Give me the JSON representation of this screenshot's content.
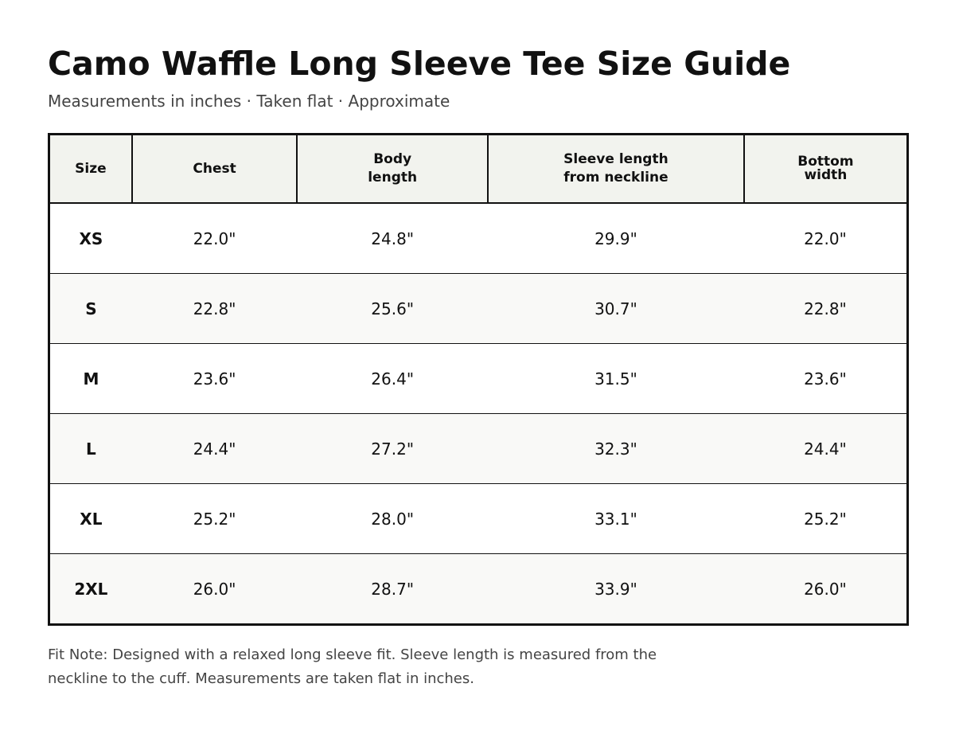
{
  "title": "Camo Waffle Long Sleeve Tee Size Guide",
  "subtitle": "Measurements in inches · Taken flat · Approximate",
  "table": {
    "headers": {
      "size": "Size",
      "chest": "Chest",
      "body_length_1": "Body",
      "body_length_2": "length",
      "sleeve_1": "Sleeve length",
      "sleeve_2": "from neckline",
      "bottom_1": "Bottom",
      "bottom_2": "width"
    },
    "rows": [
      {
        "size": "XS",
        "chest": "22.0\"",
        "body_length": "24.8\"",
        "sleeve_length": "29.9\"",
        "bottom_width": "22.0\""
      },
      {
        "size": "S",
        "chest": "22.8\"",
        "body_length": "25.6\"",
        "sleeve_length": "30.7\"",
        "bottom_width": "22.8\""
      },
      {
        "size": "M",
        "chest": "23.6\"",
        "body_length": "26.4\"",
        "sleeve_length": "31.5\"",
        "bottom_width": "23.6\""
      },
      {
        "size": "L",
        "chest": "24.4\"",
        "body_length": "27.2\"",
        "sleeve_length": "32.3\"",
        "bottom_width": "24.4\""
      },
      {
        "size": "XL",
        "chest": "25.2\"",
        "body_length": "28.0\"",
        "sleeve_length": "33.1\"",
        "bottom_width": "25.2\""
      },
      {
        "size": "2XL",
        "chest": "26.0\"",
        "body_length": "28.7\"",
        "sleeve_length": "33.9\"",
        "bottom_width": "26.0\""
      }
    ]
  },
  "fit_note": "Fit Note: Designed with a relaxed long sleeve fit. Sleeve length is measured from the neckline to the cuff. Measurements are taken flat in inches.",
  "colors": {
    "text": "#111111",
    "muted_text": "#444444",
    "header_bg": "#f2f3ee",
    "stripe_bg": "#f9f9f7",
    "border": "#111111"
  }
}
